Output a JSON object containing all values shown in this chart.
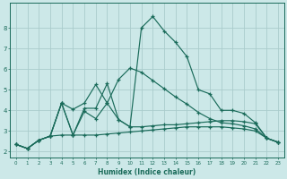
{
  "xlabel": "Humidex (Indice chaleur)",
  "xlim": [
    -0.5,
    23.5
  ],
  "ylim": [
    1.7,
    9.2
  ],
  "bg_color": "#cce8e8",
  "grid_color": "#aacccc",
  "line_color": "#1a6b5a",
  "x": [
    0,
    1,
    2,
    3,
    4,
    5,
    6,
    7,
    8,
    9,
    10,
    11,
    12,
    13,
    14,
    15,
    16,
    17,
    18,
    19,
    20,
    21,
    22,
    23
  ],
  "lines": [
    [
      2.35,
      2.15,
      2.55,
      2.75,
      4.35,
      2.8,
      3.95,
      3.6,
      4.35,
      3.55,
      3.2,
      8.0,
      8.55,
      7.85,
      7.3,
      6.6,
      5.0,
      4.8,
      4.0,
      4.0,
      3.85,
      3.4,
      2.65,
      2.45
    ],
    [
      2.35,
      2.15,
      2.55,
      2.75,
      4.35,
      4.05,
      4.35,
      5.25,
      4.35,
      5.5,
      6.05,
      5.85,
      5.45,
      5.05,
      4.65,
      4.3,
      3.9,
      3.6,
      3.4,
      3.35,
      3.25,
      3.1,
      2.65,
      2.45
    ],
    [
      2.35,
      2.15,
      2.55,
      2.75,
      4.35,
      2.8,
      4.1,
      4.1,
      5.3,
      3.55,
      3.2,
      3.2,
      3.25,
      3.3,
      3.3,
      3.35,
      3.4,
      3.45,
      3.5,
      3.5,
      3.45,
      3.35,
      2.65,
      2.45
    ],
    [
      2.35,
      2.15,
      2.55,
      2.75,
      2.8,
      2.8,
      2.8,
      2.8,
      2.85,
      2.9,
      2.95,
      3.0,
      3.05,
      3.1,
      3.15,
      3.2,
      3.2,
      3.2,
      3.2,
      3.15,
      3.1,
      3.0,
      2.65,
      2.45
    ]
  ],
  "yticks": [
    2,
    3,
    4,
    5,
    6,
    7,
    8
  ],
  "xticks": [
    0,
    1,
    2,
    3,
    4,
    5,
    6,
    7,
    8,
    9,
    10,
    11,
    12,
    13,
    14,
    15,
    16,
    17,
    18,
    19,
    20,
    21,
    22,
    23
  ]
}
